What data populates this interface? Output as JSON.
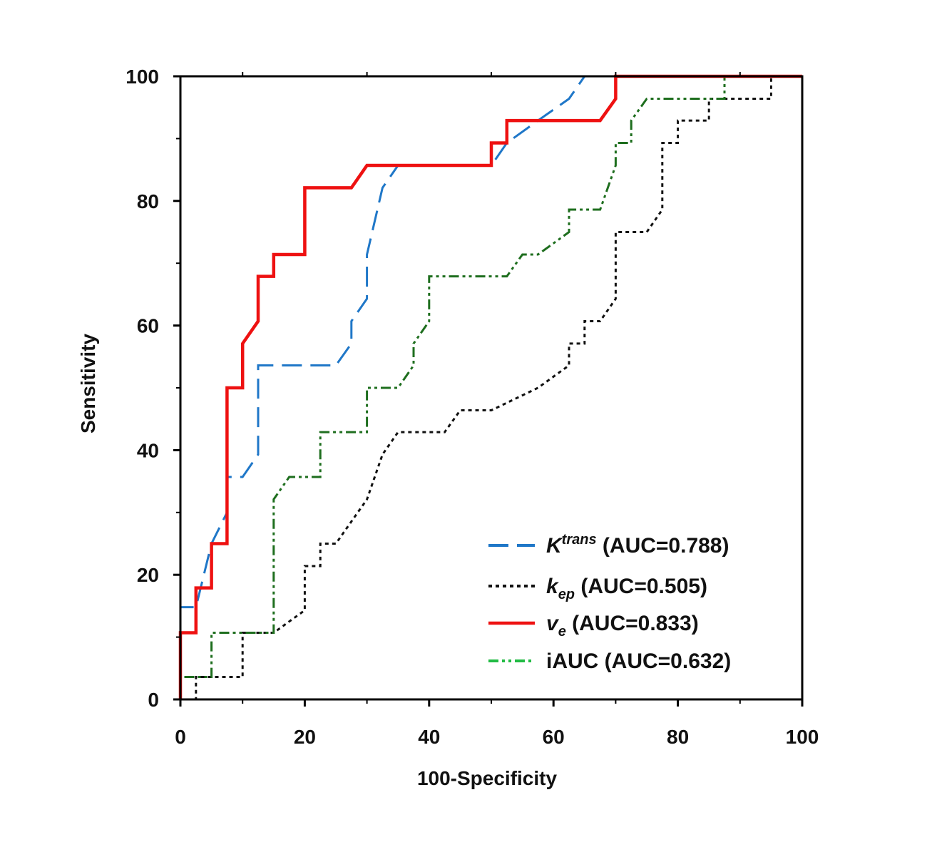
{
  "chart_data": {
    "type": "line",
    "title": "",
    "xlabel": "100-Specificity",
    "ylabel": "Sensitivity",
    "xlim": [
      0,
      100
    ],
    "ylim": [
      0,
      100
    ],
    "xticks": [
      0,
      20,
      40,
      60,
      80,
      100
    ],
    "yticks": [
      0,
      20,
      40,
      60,
      80,
      100
    ],
    "xtick_labels": [
      "0",
      "20",
      "40",
      "60",
      "80",
      "100"
    ],
    "ytick_labels": [
      "0",
      "20",
      "40",
      "60",
      "80",
      "100"
    ],
    "grid": false,
    "legend_position": "bottom-right",
    "series": [
      {
        "name": "Ktrans",
        "legend": {
          "base": "K",
          "sup": "trans",
          "sub": "",
          "rest": " (AUC=0.788)"
        },
        "auc": 0.788,
        "color": "#1f77c8",
        "style": "dashed",
        "points": [
          [
            0,
            0
          ],
          [
            0,
            14.8
          ],
          [
            2.5,
            14.8
          ],
          [
            5,
            25
          ],
          [
            7.5,
            30
          ],
          [
            7.5,
            35.7
          ],
          [
            10,
            35.7
          ],
          [
            12.5,
            39.3
          ],
          [
            12.5,
            53.6
          ],
          [
            25,
            53.6
          ],
          [
            27.5,
            57.1
          ],
          [
            27.5,
            60.7
          ],
          [
            30,
            64.3
          ],
          [
            30,
            71.4
          ],
          [
            32.5,
            82.1
          ],
          [
            35,
            85.7
          ],
          [
            50,
            85.7
          ],
          [
            52.5,
            89.3
          ],
          [
            57.5,
            92.9
          ],
          [
            62.5,
            96.4
          ],
          [
            65,
            100
          ],
          [
            100,
            100
          ]
        ]
      },
      {
        "name": "kep",
        "legend": {
          "base": "k",
          "sup": "",
          "sub": "ep",
          "rest": " (AUC=0.505)"
        },
        "auc": 0.505,
        "color": "#111111",
        "style": "dotted",
        "points": [
          [
            0,
            0
          ],
          [
            2.5,
            0
          ],
          [
            2.5,
            3.6
          ],
          [
            10,
            3.6
          ],
          [
            10,
            10.7
          ],
          [
            15,
            10.7
          ],
          [
            20,
            14.3
          ],
          [
            20,
            21.4
          ],
          [
            22.5,
            21.4
          ],
          [
            22.5,
            25
          ],
          [
            25,
            25
          ],
          [
            30,
            32.1
          ],
          [
            32.5,
            39.3
          ],
          [
            35,
            42.9
          ],
          [
            42.5,
            42.9
          ],
          [
            45,
            46.4
          ],
          [
            50,
            46.4
          ],
          [
            57.5,
            50
          ],
          [
            62.5,
            53.6
          ],
          [
            62.5,
            57.1
          ],
          [
            65,
            57.1
          ],
          [
            65,
            60.7
          ],
          [
            67.5,
            60.7
          ],
          [
            70,
            64.3
          ],
          [
            70,
            75
          ],
          [
            75,
            75
          ],
          [
            77.5,
            78.6
          ],
          [
            77.5,
            89.3
          ],
          [
            80,
            89.3
          ],
          [
            80,
            92.9
          ],
          [
            85,
            92.9
          ],
          [
            85,
            96.4
          ],
          [
            95,
            96.4
          ],
          [
            95,
            100
          ],
          [
            100,
            100
          ]
        ]
      },
      {
        "name": "ve",
        "legend": {
          "base": "v",
          "sup": "",
          "sub": "e",
          "rest": " (AUC=0.833)"
        },
        "auc": 0.833,
        "color": "#ee1111",
        "style": "solid",
        "points": [
          [
            0,
            0
          ],
          [
            0,
            10.7
          ],
          [
            2.5,
            10.7
          ],
          [
            2.5,
            17.9
          ],
          [
            5,
            17.9
          ],
          [
            5,
            25
          ],
          [
            7.5,
            25
          ],
          [
            7.5,
            50
          ],
          [
            10,
            50
          ],
          [
            10,
            57.1
          ],
          [
            12.5,
            60.7
          ],
          [
            12.5,
            67.9
          ],
          [
            15,
            67.9
          ],
          [
            15,
            71.4
          ],
          [
            20,
            71.4
          ],
          [
            20,
            82.1
          ],
          [
            27.5,
            82.1
          ],
          [
            30,
            85.7
          ],
          [
            50,
            85.7
          ],
          [
            50,
            89.3
          ],
          [
            52.5,
            89.3
          ],
          [
            52.5,
            92.9
          ],
          [
            67.5,
            92.9
          ],
          [
            70,
            96.4
          ],
          [
            70,
            100
          ],
          [
            100,
            100
          ]
        ]
      },
      {
        "name": "iAUC",
        "legend": {
          "base": "iAUC",
          "sup": "",
          "sub": "",
          "rest": " (AUC=0.632)"
        },
        "auc": 0.632,
        "color": "#1e6e1e",
        "legend_color": "#22bb44",
        "style": "dashdotdot",
        "points": [
          [
            0,
            0
          ],
          [
            0,
            3.6
          ],
          [
            5,
            3.6
          ],
          [
            5,
            10.7
          ],
          [
            15,
            10.7
          ],
          [
            15,
            32.1
          ],
          [
            17.5,
            35.7
          ],
          [
            22.5,
            35.7
          ],
          [
            22.5,
            42.9
          ],
          [
            30,
            42.9
          ],
          [
            30,
            50
          ],
          [
            35,
            50
          ],
          [
            37.5,
            53.6
          ],
          [
            37.5,
            57.1
          ],
          [
            40,
            60.7
          ],
          [
            40,
            67.9
          ],
          [
            52.5,
            67.9
          ],
          [
            55,
            71.4
          ],
          [
            57.5,
            71.4
          ],
          [
            62.5,
            75
          ],
          [
            62.5,
            78.6
          ],
          [
            67.5,
            78.6
          ],
          [
            70,
            85.7
          ],
          [
            70,
            89.3
          ],
          [
            72.5,
            89.3
          ],
          [
            72.5,
            92.9
          ],
          [
            75,
            96.4
          ],
          [
            87.5,
            96.4
          ],
          [
            87.5,
            100
          ],
          [
            100,
            100
          ]
        ]
      }
    ]
  }
}
